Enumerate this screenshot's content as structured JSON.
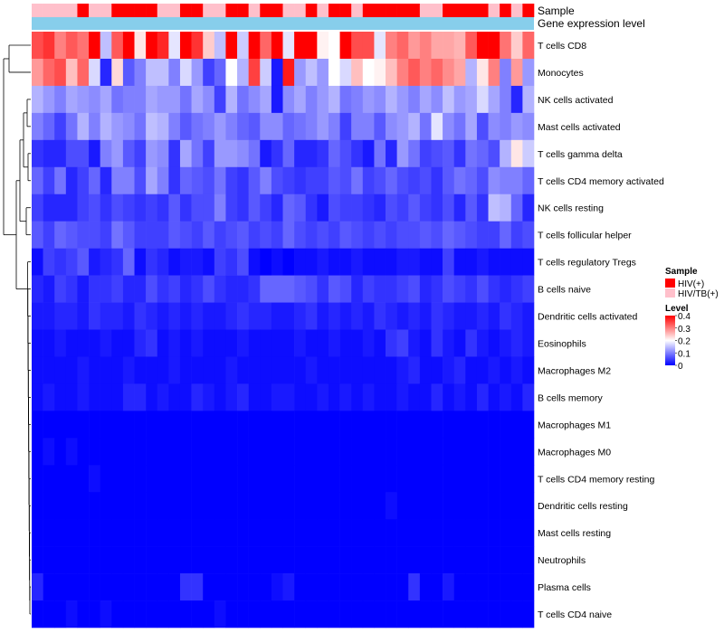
{
  "chart_data": {
    "type": "heatmap",
    "title": "",
    "annotation_labels": {
      "sample": "Sample",
      "gene_expression": "Gene expression level"
    },
    "rows": [
      "T cells CD8",
      "Monocytes",
      "NK cells activated",
      "Mast cells activated",
      "T cells gamma delta",
      "T cells CD4 memory activated",
      "NK cells resting",
      "T cells follicular helper",
      "T cells regulatory  Tregs",
      "B cells naive",
      "Dendritic cells activated",
      "Eosinophils",
      "Macrophages M2",
      "B cells memory",
      "Macrophages M1",
      "Macrophages M0",
      "T cells CD4 memory resting",
      "Dendritic cells resting",
      "Mast cells resting",
      "Neutrophils",
      "Plasma cells",
      "T cells CD4 naive"
    ],
    "n_columns": 44,
    "sample_groups": [
      "HIV/TB(+)",
      "HIV/TB(+)",
      "HIV/TB(+)",
      "HIV/TB(+)",
      "HIV(+)",
      "HIV/TB(+)",
      "HIV/TB(+)",
      "HIV(+)",
      "HIV(+)",
      "HIV(+)",
      "HIV(+)",
      "HIV/TB(+)",
      "HIV/TB(+)",
      "HIV(+)",
      "HIV(+)",
      "HIV/TB(+)",
      "HIV/TB(+)",
      "HIV(+)",
      "HIV(+)",
      "HIV/TB(+)",
      "HIV(+)",
      "HIV(+)",
      "HIV/TB(+)",
      "HIV/TB(+)",
      "HIV(+)",
      "HIV/TB(+)",
      "HIV(+)",
      "HIV(+)",
      "HIV/TB(+)",
      "HIV(+)",
      "HIV(+)",
      "HIV(+)",
      "HIV(+)",
      "HIV(+)",
      "HIV/TB(+)",
      "HIV/TB(+)",
      "HIV(+)",
      "HIV(+)",
      "HIV(+)",
      "HIV(+)",
      "HIV/TB(+)",
      "HIV(+)",
      "HIV/TB(+)",
      "HIV(+)"
    ],
    "values": [
      [
        0.34,
        0.36,
        0.3,
        0.33,
        0.31,
        0.4,
        0.15,
        0.33,
        0.4,
        0.22,
        0.4,
        0.37,
        0.18,
        0.4,
        0.36,
        0.24,
        0.15,
        0.4,
        0.16,
        0.4,
        0.32,
        0.4,
        0.18,
        0.4,
        0.4,
        0.21,
        0.2,
        0.4,
        0.34,
        0.34,
        0.18,
        0.3,
        0.32,
        0.28,
        0.3,
        0.27,
        0.27,
        0.26,
        0.33,
        0.4,
        0.4,
        0.31,
        0.24,
        0.32
      ],
      [
        0.28,
        0.32,
        0.34,
        0.25,
        0.32,
        0.17,
        0.03,
        0.23,
        0.07,
        0.1,
        0.15,
        0.15,
        0.1,
        0.17,
        0.12,
        0.05,
        0.08,
        0.2,
        0.14,
        0.35,
        0.16,
        0.02,
        0.38,
        0.12,
        0.15,
        0.12,
        0.2,
        0.17,
        0.25,
        0.2,
        0.21,
        0.25,
        0.3,
        0.33,
        0.3,
        0.32,
        0.29,
        0.27,
        0.14,
        0.22,
        0.3,
        0.1,
        0.28,
        0.12
      ],
      [
        0.14,
        0.12,
        0.1,
        0.13,
        0.12,
        0.11,
        0.13,
        0.09,
        0.1,
        0.1,
        0.13,
        0.12,
        0.12,
        0.09,
        0.13,
        0.11,
        0.05,
        0.14,
        0.09,
        0.11,
        0.13,
        0.02,
        0.11,
        0.13,
        0.1,
        0.12,
        0.14,
        0.09,
        0.1,
        0.12,
        0.11,
        0.14,
        0.12,
        0.1,
        0.13,
        0.11,
        0.15,
        0.12,
        0.13,
        0.17,
        0.13,
        0.1,
        0.03,
        0.14
      ],
      [
        0.1,
        0.08,
        0.05,
        0.09,
        0.14,
        0.1,
        0.14,
        0.12,
        0.11,
        0.09,
        0.15,
        0.14,
        0.1,
        0.07,
        0.09,
        0.1,
        0.12,
        0.1,
        0.08,
        0.07,
        0.11,
        0.11,
        0.08,
        0.09,
        0.1,
        0.12,
        0.1,
        0.05,
        0.1,
        0.1,
        0.07,
        0.11,
        0.12,
        0.14,
        0.09,
        0.18,
        0.11,
        0.09,
        0.13,
        0.06,
        0.11,
        0.1,
        0.12,
        0.11
      ],
      [
        0.04,
        0.03,
        0.03,
        0.06,
        0.06,
        0.02,
        0.1,
        0.12,
        0.07,
        0.05,
        0.12,
        0.11,
        0.04,
        0.13,
        0.09,
        0.05,
        0.12,
        0.12,
        0.11,
        0.09,
        0.02,
        0.04,
        0.08,
        0.03,
        0.03,
        0.04,
        0.08,
        0.06,
        0.04,
        0.02,
        0.09,
        0.03,
        0.12,
        0.09,
        0.05,
        0.06,
        0.07,
        0.04,
        0.09,
        0.08,
        0.06,
        0.14,
        0.22,
        0.16
      ],
      [
        0.08,
        0.05,
        0.09,
        0.03,
        0.05,
        0.08,
        0.03,
        0.1,
        0.1,
        0.06,
        0.13,
        0.1,
        0.04,
        0.08,
        0.07,
        0.06,
        0.09,
        0.05,
        0.04,
        0.07,
        0.1,
        0.06,
        0.05,
        0.04,
        0.05,
        0.05,
        0.07,
        0.06,
        0.09,
        0.05,
        0.06,
        0.08,
        0.06,
        0.05,
        0.06,
        0.04,
        0.07,
        0.09,
        0.08,
        0.06,
        0.11,
        0.1,
        0.1,
        0.08
      ],
      [
        0.05,
        0.03,
        0.03,
        0.03,
        0.05,
        0.06,
        0.04,
        0.06,
        0.05,
        0.04,
        0.05,
        0.04,
        0.07,
        0.04,
        0.06,
        0.06,
        0.1,
        0.05,
        0.04,
        0.07,
        0.05,
        0.03,
        0.08,
        0.07,
        0.04,
        0.02,
        0.06,
        0.05,
        0.05,
        0.04,
        0.03,
        0.06,
        0.05,
        0.07,
        0.05,
        0.04,
        0.06,
        0.03,
        0.07,
        0.04,
        0.15,
        0.14,
        0.08,
        0.03
      ],
      [
        0.07,
        0.05,
        0.08,
        0.07,
        0.06,
        0.06,
        0.05,
        0.09,
        0.07,
        0.05,
        0.05,
        0.05,
        0.07,
        0.06,
        0.05,
        0.07,
        0.05,
        0.06,
        0.07,
        0.05,
        0.06,
        0.05,
        0.08,
        0.06,
        0.05,
        0.06,
        0.05,
        0.07,
        0.06,
        0.05,
        0.06,
        0.05,
        0.06,
        0.06,
        0.07,
        0.06,
        0.08,
        0.07,
        0.06,
        0.05,
        0.05,
        0.08,
        0.05,
        0.06
      ],
      [
        0.01,
        0.05,
        0.04,
        0.05,
        0.07,
        0.02,
        0.03,
        0.04,
        0.08,
        0.01,
        0.04,
        0.03,
        0.01,
        0.02,
        0.02,
        0.01,
        0.05,
        0.04,
        0.06,
        0.01,
        0.0,
        0.01,
        0.0,
        0.01,
        0.01,
        0.02,
        0.01,
        0.01,
        0.02,
        0.01,
        0.01,
        0.01,
        0.02,
        0.02,
        0.01,
        0.01,
        0.05,
        0.01,
        0.01,
        0.02,
        0.01,
        0.01,
        0.01,
        0.01
      ],
      [
        0.03,
        0.02,
        0.05,
        0.04,
        0.02,
        0.04,
        0.04,
        0.05,
        0.03,
        0.03,
        0.06,
        0.04,
        0.05,
        0.03,
        0.04,
        0.06,
        0.04,
        0.03,
        0.03,
        0.04,
        0.08,
        0.08,
        0.08,
        0.07,
        0.06,
        0.04,
        0.07,
        0.06,
        0.03,
        0.05,
        0.04,
        0.04,
        0.05,
        0.06,
        0.03,
        0.04,
        0.06,
        0.05,
        0.04,
        0.06,
        0.04,
        0.03,
        0.04,
        0.05
      ],
      [
        0.02,
        0.02,
        0.03,
        0.03,
        0.02,
        0.04,
        0.03,
        0.03,
        0.02,
        0.04,
        0.03,
        0.02,
        0.03,
        0.02,
        0.03,
        0.02,
        0.02,
        0.03,
        0.04,
        0.03,
        0.03,
        0.02,
        0.02,
        0.03,
        0.04,
        0.02,
        0.03,
        0.02,
        0.03,
        0.02,
        0.04,
        0.03,
        0.02,
        0.03,
        0.02,
        0.04,
        0.03,
        0.02,
        0.02,
        0.03,
        0.02,
        0.04,
        0.03,
        0.02
      ],
      [
        0.01,
        0.01,
        0.02,
        0.01,
        0.01,
        0.01,
        0.02,
        0.01,
        0.01,
        0.03,
        0.04,
        0.01,
        0.02,
        0.01,
        0.02,
        0.01,
        0.01,
        0.01,
        0.02,
        0.01,
        0.01,
        0.01,
        0.01,
        0.02,
        0.01,
        0.01,
        0.02,
        0.01,
        0.01,
        0.02,
        0.01,
        0.04,
        0.05,
        0.02,
        0.01,
        0.04,
        0.02,
        0.01,
        0.04,
        0.02,
        0.01,
        0.02,
        0.03,
        0.02
      ],
      [
        0.01,
        0.01,
        0.01,
        0.01,
        0.02,
        0.01,
        0.01,
        0.01,
        0.02,
        0.01,
        0.01,
        0.01,
        0.02,
        0.01,
        0.01,
        0.01,
        0.01,
        0.02,
        0.01,
        0.01,
        0.01,
        0.01,
        0.01,
        0.01,
        0.02,
        0.01,
        0.01,
        0.01,
        0.01,
        0.01,
        0.01,
        0.01,
        0.02,
        0.03,
        0.01,
        0.01,
        0.02,
        0.03,
        0.01,
        0.01,
        0.02,
        0.01,
        0.02,
        0.01
      ],
      [
        0.01,
        0.02,
        0.01,
        0.01,
        0.02,
        0.01,
        0.01,
        0.01,
        0.03,
        0.03,
        0.01,
        0.02,
        0.01,
        0.01,
        0.03,
        0.02,
        0.01,
        0.02,
        0.03,
        0.01,
        0.01,
        0.02,
        0.02,
        0.01,
        0.01,
        0.02,
        0.01,
        0.02,
        0.01,
        0.02,
        0.01,
        0.01,
        0.02,
        0.01,
        0.01,
        0.03,
        0.01,
        0.02,
        0.01,
        0.03,
        0.01,
        0.02,
        0.01,
        0.03
      ],
      [
        0.0,
        0.0,
        0.0,
        0.0,
        0.0,
        0.0,
        0.0,
        0.0,
        0.0,
        0.0,
        0.0,
        0.0,
        0.0,
        0.0,
        0.0,
        0.0,
        0.0,
        0.0,
        0.0,
        0.0,
        0.0,
        0.0,
        0.0,
        0.0,
        0.0,
        0.0,
        0.0,
        0.0,
        0.0,
        0.0,
        0.0,
        0.0,
        0.0,
        0.0,
        0.0,
        0.0,
        0.0,
        0.0,
        0.0,
        0.0,
        0.0,
        0.0,
        0.0,
        0.0
      ],
      [
        0.0,
        0.01,
        0.0,
        0.01,
        0.0,
        0.0,
        0.0,
        0.0,
        0.0,
        0.0,
        0.0,
        0.0,
        0.0,
        0.0,
        0.0,
        0.0,
        0.0,
        0.0,
        0.0,
        0.0,
        0.0,
        0.0,
        0.0,
        0.0,
        0.0,
        0.0,
        0.0,
        0.0,
        0.0,
        0.0,
        0.0,
        0.0,
        0.0,
        0.0,
        0.0,
        0.0,
        0.0,
        0.0,
        0.0,
        0.0,
        0.0,
        0.0,
        0.0,
        0.0
      ],
      [
        0.0,
        0.0,
        0.0,
        0.0,
        0.0,
        0.01,
        0.0,
        0.0,
        0.0,
        0.0,
        0.0,
        0.0,
        0.0,
        0.0,
        0.0,
        0.0,
        0.0,
        0.0,
        0.0,
        0.0,
        0.0,
        0.0,
        0.0,
        0.0,
        0.0,
        0.0,
        0.0,
        0.0,
        0.0,
        0.0,
        0.0,
        0.0,
        0.0,
        0.0,
        0.0,
        0.0,
        0.0,
        0.0,
        0.0,
        0.0,
        0.0,
        0.0,
        0.0,
        0.0
      ],
      [
        0.0,
        0.0,
        0.0,
        0.0,
        0.0,
        0.0,
        0.0,
        0.0,
        0.0,
        0.0,
        0.0,
        0.0,
        0.0,
        0.0,
        0.0,
        0.0,
        0.0,
        0.0,
        0.0,
        0.0,
        0.0,
        0.0,
        0.0,
        0.0,
        0.0,
        0.0,
        0.0,
        0.0,
        0.0,
        0.0,
        0.0,
        0.01,
        0.0,
        0.0,
        0.0,
        0.0,
        0.0,
        0.0,
        0.0,
        0.0,
        0.0,
        0.0,
        0.0,
        0.0
      ],
      [
        0.0,
        0.0,
        0.0,
        0.0,
        0.0,
        0.0,
        0.0,
        0.0,
        0.0,
        0.0,
        0.0,
        0.0,
        0.0,
        0.0,
        0.0,
        0.0,
        0.0,
        0.0,
        0.0,
        0.0,
        0.0,
        0.0,
        0.0,
        0.0,
        0.0,
        0.0,
        0.0,
        0.0,
        0.0,
        0.0,
        0.0,
        0.0,
        0.0,
        0.0,
        0.0,
        0.0,
        0.0,
        0.0,
        0.0,
        0.0,
        0.0,
        0.0,
        0.0,
        0.0
      ],
      [
        0.0,
        0.0,
        0.0,
        0.0,
        0.0,
        0.0,
        0.0,
        0.0,
        0.0,
        0.0,
        0.0,
        0.0,
        0.0,
        0.0,
        0.0,
        0.0,
        0.0,
        0.0,
        0.0,
        0.0,
        0.0,
        0.0,
        0.0,
        0.0,
        0.0,
        0.0,
        0.0,
        0.0,
        0.0,
        0.0,
        0.0,
        0.0,
        0.0,
        0.0,
        0.0,
        0.0,
        0.0,
        0.0,
        0.0,
        0.0,
        0.0,
        0.0,
        0.0,
        0.0
      ],
      [
        0.03,
        0.0,
        0.0,
        0.0,
        0.0,
        0.0,
        0.0,
        0.0,
        0.0,
        0.0,
        0.0,
        0.0,
        0.0,
        0.04,
        0.04,
        0.0,
        0.0,
        0.0,
        0.0,
        0.0,
        0.0,
        0.01,
        0.02,
        0.0,
        0.0,
        0.0,
        0.0,
        0.0,
        0.0,
        0.0,
        0.0,
        0.0,
        0.0,
        0.04,
        0.0,
        0.0,
        0.02,
        0.0,
        0.0,
        0.0,
        0.0,
        0.0,
        0.0,
        0.0
      ],
      [
        0.0,
        0.0,
        0.0,
        0.01,
        0.0,
        0.0,
        0.01,
        0.0,
        0.0,
        0.0,
        0.0,
        0.0,
        0.0,
        0.0,
        0.0,
        0.0,
        0.01,
        0.0,
        0.0,
        0.0,
        0.0,
        0.0,
        0.0,
        0.0,
        0.0,
        0.0,
        0.0,
        0.0,
        0.0,
        0.0,
        0.0,
        0.0,
        0.0,
        0.0,
        0.0,
        0.0,
        0.0,
        0.0,
        0.0,
        0.0,
        0.0,
        0.0,
        0.0,
        0.0
      ]
    ],
    "legend": {
      "sample_title": "Sample",
      "sample_entries": [
        {
          "label": "HIV(+)",
          "color": "#ff0000"
        },
        {
          "label": "HIV/TB(+)",
          "color": "#ffc0cb"
        }
      ],
      "level_title": "Level",
      "level_ticks": [
        "0.4",
        "0.3",
        "0.2",
        "0.1",
        "0"
      ],
      "level_tick_values": [
        0.4,
        0.3,
        0.2,
        0.1,
        0.0
      ],
      "level_range": [
        0,
        0.4
      ],
      "placement": "right"
    },
    "colors": {
      "low": "#0000ff",
      "mid": "#ffffff",
      "high": "#ff0000",
      "gene_expression_bar": "#87ceeb",
      "hiv": "#ff0000",
      "hivtb": "#ffc0cb"
    }
  }
}
